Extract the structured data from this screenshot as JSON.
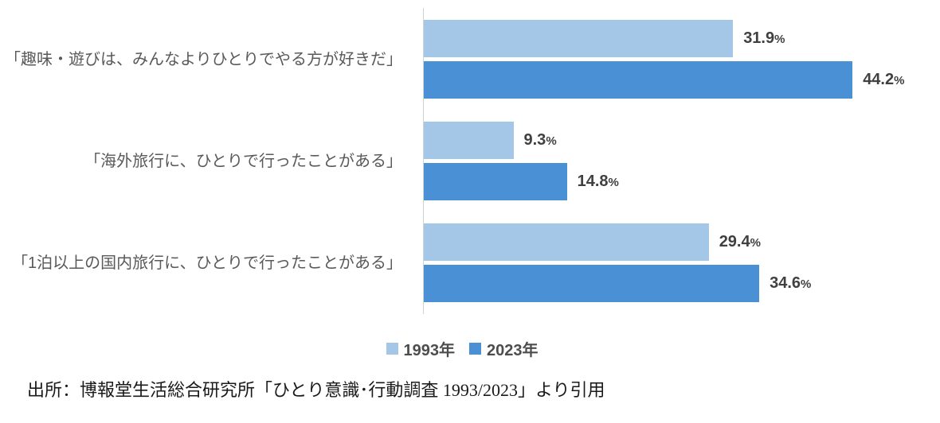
{
  "chart_data": {
    "type": "bar",
    "orientation": "horizontal",
    "title": "",
    "categories": [
      "「趣味・遊びは、みんなよりひとりでやる方が好きだ」",
      "「海外旅行に、ひとりで行ったことがある」",
      "「1泊以上の国内旅行に、ひとりで行ったことがある」"
    ],
    "series": [
      {
        "key": "1993",
        "name": "1993年",
        "color": "#a4c7e8",
        "values": [
          31.9,
          9.3,
          29.4
        ]
      },
      {
        "key": "2023",
        "name": "2023年",
        "color": "#4a90d4",
        "values": [
          44.2,
          14.8,
          34.6
        ]
      }
    ],
    "value_suffix": "%",
    "xlim": [
      0,
      50
    ],
    "grid": false,
    "legend_position": "bottom",
    "axis_line_color": "#d2d2d2"
  },
  "source": {
    "text": "出所：博報堂生活総合研究所「ひとり意識･行動調査 1993/2023」より引用"
  },
  "colors": {
    "category_text": "#595959",
    "value_text": "#404040",
    "background": "#ffffff"
  }
}
